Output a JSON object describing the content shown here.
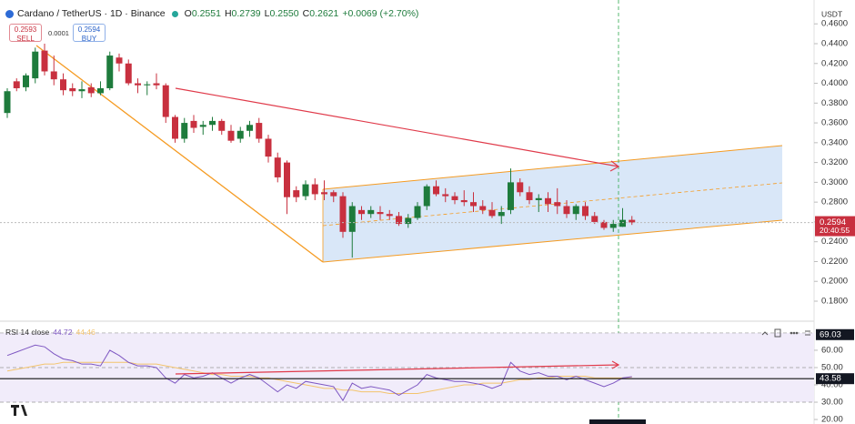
{
  "header": {
    "symbol": "Cardano / TetherUS · 1D · Binance",
    "ohlc": [
      {
        "label": "O",
        "value": "0.2551"
      },
      {
        "label": "H",
        "value": "0.2739"
      },
      {
        "label": "L",
        "value": "0.2550"
      },
      {
        "label": "C",
        "value": "0.2621"
      }
    ],
    "change": "+0.0069 (+2.70%)",
    "sell_price": "0.2593",
    "sell": "SELL",
    "spread": "0.0001",
    "buy_price": "0.2594",
    "buy": "BUY",
    "currency": "USDT",
    "countdown": "20:40:55"
  },
  "chart_data": [
    {
      "type": "candlestick",
      "up_color": "#1e7b3c",
      "down_color": "#c8303f",
      "open": [
        0.37,
        0.402,
        0.396,
        0.405,
        0.433,
        0.412,
        0.404,
        0.395,
        0.392,
        0.396,
        0.39,
        0.395,
        0.426,
        0.42,
        0.4,
        0.398,
        0.4,
        0.398,
        0.366,
        0.344,
        0.362,
        0.356,
        0.358,
        0.362,
        0.352,
        0.344,
        0.352,
        0.36,
        0.344,
        0.325,
        0.32,
        0.292,
        0.286,
        0.298,
        0.29,
        0.29,
        0.286,
        0.25,
        0.272,
        0.268,
        0.27,
        0.268,
        0.266,
        0.258,
        0.264,
        0.276,
        0.296,
        0.288,
        0.286,
        0.282,
        0.28,
        0.276,
        0.272,
        0.266,
        0.272,
        0.3,
        0.29,
        0.282,
        0.284,
        0.28,
        0.276,
        0.268,
        0.276,
        0.266,
        0.26,
        0.254,
        0.2551,
        0.2621
      ],
      "high": [
        0.395,
        0.405,
        0.41,
        0.436,
        0.44,
        0.428,
        0.41,
        0.4,
        0.402,
        0.4,
        0.402,
        0.432,
        0.43,
        0.424,
        0.405,
        0.402,
        0.41,
        0.4,
        0.368,
        0.365,
        0.368,
        0.362,
        0.366,
        0.364,
        0.358,
        0.356,
        0.362,
        0.365,
        0.348,
        0.33,
        0.322,
        0.296,
        0.302,
        0.304,
        0.302,
        0.292,
        0.29,
        0.28,
        0.276,
        0.276,
        0.276,
        0.272,
        0.27,
        0.268,
        0.28,
        0.298,
        0.302,
        0.294,
        0.29,
        0.292,
        0.29,
        0.282,
        0.28,
        0.276,
        0.314,
        0.304,
        0.296,
        0.288,
        0.29,
        0.294,
        0.282,
        0.278,
        0.28,
        0.27,
        0.262,
        0.262,
        0.2739,
        0.266
      ],
      "low": [
        0.365,
        0.392,
        0.392,
        0.4,
        0.408,
        0.398,
        0.388,
        0.387,
        0.385,
        0.386,
        0.388,
        0.393,
        0.412,
        0.398,
        0.39,
        0.388,
        0.394,
        0.36,
        0.34,
        0.34,
        0.35,
        0.348,
        0.352,
        0.348,
        0.34,
        0.34,
        0.346,
        0.34,
        0.32,
        0.3,
        0.268,
        0.28,
        0.282,
        0.282,
        0.282,
        0.28,
        0.244,
        0.224,
        0.262,
        0.264,
        0.262,
        0.262,
        0.256,
        0.254,
        0.262,
        0.272,
        0.286,
        0.28,
        0.278,
        0.276,
        0.27,
        0.268,
        0.264,
        0.258,
        0.268,
        0.286,
        0.278,
        0.27,
        0.27,
        0.268,
        0.264,
        0.262,
        0.262,
        0.258,
        0.252,
        0.25,
        0.255,
        0.257
      ],
      "close": [
        0.392,
        0.395,
        0.408,
        0.432,
        0.412,
        0.404,
        0.393,
        0.392,
        0.394,
        0.39,
        0.395,
        0.428,
        0.42,
        0.4,
        0.398,
        0.399,
        0.398,
        0.366,
        0.344,
        0.36,
        0.355,
        0.358,
        0.362,
        0.352,
        0.342,
        0.352,
        0.358,
        0.344,
        0.326,
        0.305,
        0.285,
        0.285,
        0.298,
        0.288,
        0.288,
        0.286,
        0.25,
        0.276,
        0.268,
        0.272,
        0.268,
        0.266,
        0.258,
        0.264,
        0.276,
        0.296,
        0.288,
        0.286,
        0.282,
        0.28,
        0.276,
        0.272,
        0.266,
        0.27,
        0.3,
        0.29,
        0.282,
        0.284,
        0.278,
        0.276,
        0.268,
        0.276,
        0.266,
        0.26,
        0.254,
        0.258,
        0.2621,
        0.2594
      ],
      "last_price": 0.2594,
      "last_color": "#c8303f",
      "ylim": [
        0.1607,
        0.4841
      ],
      "yticks": [
        {
          "value": 0.18,
          "label": "0.1800"
        },
        {
          "value": 0.2,
          "label": "0.2000"
        },
        {
          "value": 0.22,
          "label": "0.2200"
        },
        {
          "value": 0.24,
          "label": "0.2400"
        },
        {
          "value": 0.26,
          "label": "0.2600"
        },
        {
          "value": 0.28,
          "label": "0.2800"
        },
        {
          "value": 0.3,
          "label": "0.3000"
        },
        {
          "value": 0.32,
          "label": "0.3200"
        },
        {
          "value": 0.34,
          "label": "0.3400"
        },
        {
          "value": 0.36,
          "label": "0.3600"
        },
        {
          "value": 0.38,
          "label": "0.3800"
        },
        {
          "value": 0.4,
          "label": "0.4000"
        },
        {
          "value": 0.42,
          "label": "0.4200"
        },
        {
          "value": 0.44,
          "label": "0.4400"
        },
        {
          "value": 0.46,
          "label": "0.4600"
        }
      ]
    },
    {
      "type": "line",
      "title": "RSI 14 close",
      "series": [
        {
          "color": "#7e57c2",
          "values": [
            57,
            59,
            61,
            63,
            62,
            58,
            55,
            54,
            52,
            52,
            51,
            60,
            57,
            53,
            51,
            51,
            50,
            44,
            41,
            46,
            44,
            45,
            47,
            44,
            41,
            44,
            46,
            44,
            40,
            36,
            40,
            38,
            42,
            41,
            40,
            39,
            31,
            41,
            38,
            39,
            38,
            37,
            34,
            37,
            40,
            46,
            44,
            43,
            42,
            42,
            41,
            40,
            38,
            40,
            53,
            48,
            46,
            47,
            45,
            45,
            43,
            45,
            43,
            41,
            39,
            41,
            44,
            44.72
          ]
        },
        {
          "color": "#f3c46d",
          "values": [
            48,
            49,
            50,
            51,
            52,
            52,
            53,
            53,
            53,
            53,
            53,
            53,
            53,
            53,
            52,
            52,
            52,
            51,
            50,
            49,
            48,
            47,
            46,
            46,
            45,
            45,
            45,
            44,
            44,
            43,
            42,
            41,
            40,
            39,
            38,
            38,
            37,
            37,
            36,
            36,
            36,
            35,
            35,
            35,
            35,
            36,
            37,
            38,
            39,
            40,
            40,
            41,
            41,
            41,
            42,
            43,
            43,
            44,
            44,
            45,
            45,
            45,
            45,
            44,
            44,
            44,
            44,
            44.46
          ]
        }
      ],
      "bands": [
        70,
        50,
        30
      ],
      "band_fill": "#f1ecfa",
      "markers": [
        69.03,
        43.58
      ],
      "ylim": [
        17.4,
        74.7
      ],
      "yticks": [
        {
          "value": 20,
          "label": "20.00"
        },
        {
          "value": 30,
          "label": "30.00"
        },
        {
          "value": 40,
          "label": "40.00"
        },
        {
          "value": 50,
          "label": "50.00"
        },
        {
          "value": 60,
          "label": "60.00"
        }
      ]
    }
  ]
}
